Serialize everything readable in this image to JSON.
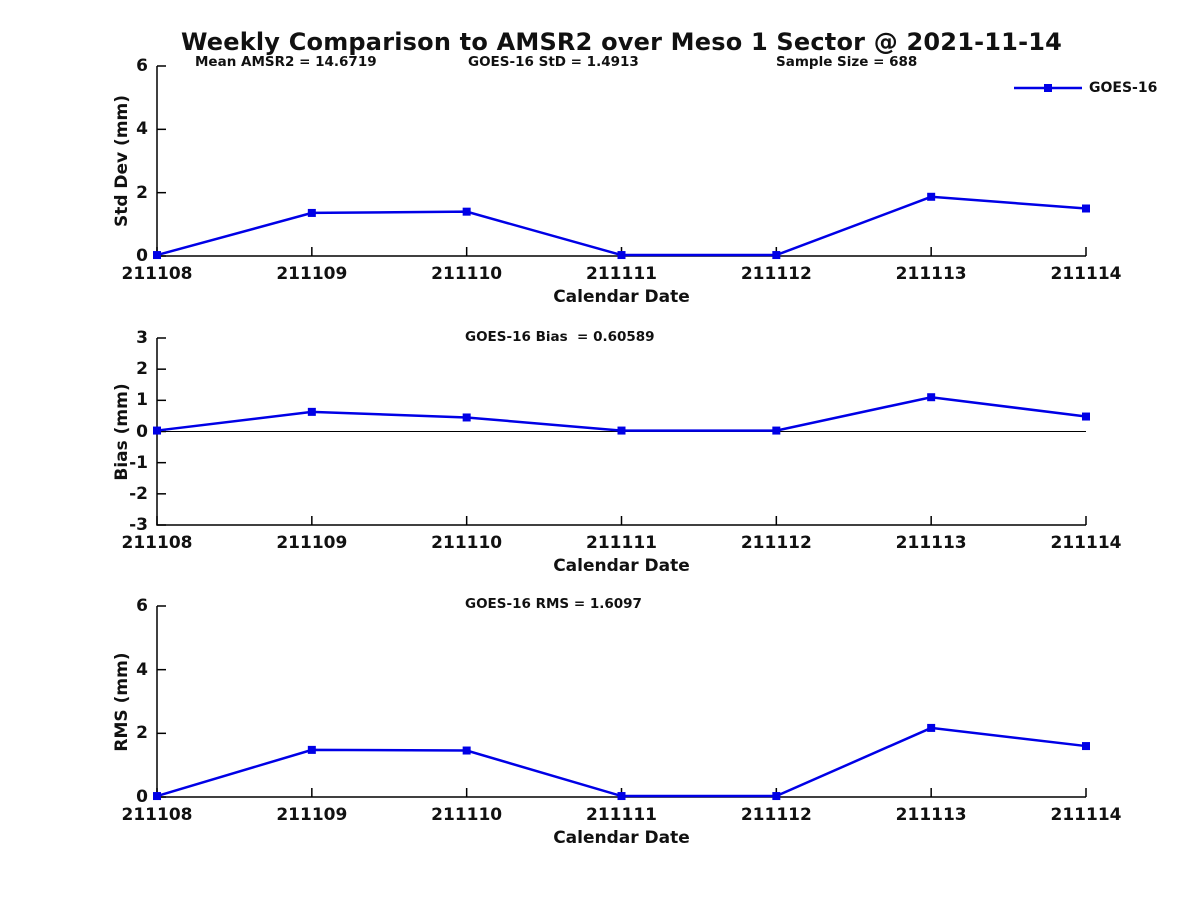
{
  "title": "Weekly Comparison to AMSR2 over Meso 1 Sector @ 2021-11-14",
  "colors": {
    "line": "#0000E6",
    "marker": "#0000E6",
    "axis": "#000000",
    "text": "#111111"
  },
  "chart_data": [
    {
      "type": "line",
      "name": "std-dev-panel",
      "x_labels": [
        "211108",
        "211109",
        "211110",
        "211111",
        "211112",
        "211113",
        "211114"
      ],
      "series": [
        {
          "name": "GOES-16",
          "values": [
            0.03,
            1.36,
            1.4,
            0.03,
            0.03,
            1.87,
            1.5
          ]
        }
      ],
      "ylabel": "Std Dev (mm)",
      "xlabel": "Calendar Date",
      "ylim": [
        0,
        6
      ],
      "yticks": [
        0,
        2,
        4,
        6
      ],
      "grid": false,
      "zero_line": false,
      "legend": "GOES-16",
      "legend_position": "top-right",
      "annotations": [
        "Mean AMSR2 = 14.6719",
        "GOES-16 StD = 1.4913",
        "Sample Size = 688"
      ]
    },
    {
      "type": "line",
      "name": "bias-panel",
      "x_labels": [
        "211108",
        "211109",
        "211110",
        "211111",
        "211112",
        "211113",
        "211114"
      ],
      "series": [
        {
          "name": "GOES-16",
          "values": [
            0.03,
            0.63,
            0.45,
            0.03,
            0.03,
            1.1,
            0.48
          ]
        }
      ],
      "ylabel": "Bias (mm)",
      "xlabel": "Calendar Date",
      "ylim": [
        -3,
        3
      ],
      "yticks": [
        3,
        2,
        1,
        0,
        -1,
        -2,
        -3
      ],
      "grid": false,
      "zero_line": true,
      "annotations": [
        "GOES-16 Bias  = 0.60589"
      ]
    },
    {
      "type": "line",
      "name": "rms-panel",
      "x_labels": [
        "211108",
        "211109",
        "211110",
        "211111",
        "211112",
        "211113",
        "211114"
      ],
      "series": [
        {
          "name": "GOES-16",
          "values": [
            0.03,
            1.48,
            1.46,
            0.03,
            0.03,
            2.17,
            1.6
          ]
        }
      ],
      "ylabel": "RMS (mm)",
      "xlabel": "Calendar Date",
      "ylim": [
        0,
        6
      ],
      "yticks": [
        0,
        2,
        4,
        6
      ],
      "grid": false,
      "zero_line": false,
      "annotations": [
        "GOES-16 RMS = 1.6097"
      ]
    }
  ]
}
